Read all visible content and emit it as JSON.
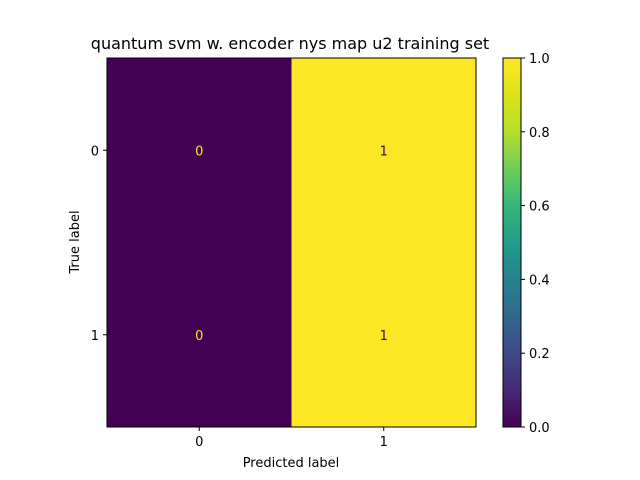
{
  "chart_data": {
    "type": "heatmap",
    "title": "quantum svm w. encoder nys map u2 training set",
    "xlabel": "Predicted label",
    "ylabel": "True label",
    "x_categories": [
      "0",
      "1"
    ],
    "y_categories": [
      "0",
      "1"
    ],
    "values": [
      [
        0,
        1
      ],
      [
        0,
        1
      ]
    ],
    "cell_labels": [
      [
        "0",
        "1"
      ],
      [
        "0",
        "1"
      ]
    ],
    "colormap": "viridis",
    "colors": {
      "low": "#440154",
      "high": "#fde725"
    },
    "colorbar": {
      "range": [
        0.0,
        1.0
      ],
      "ticks": [
        0.0,
        0.2,
        0.4,
        0.6,
        0.8,
        1.0
      ],
      "tick_labels": [
        "0.0",
        "0.2",
        "0.4",
        "0.6",
        "0.8",
        "1.0"
      ]
    },
    "grid": false
  }
}
